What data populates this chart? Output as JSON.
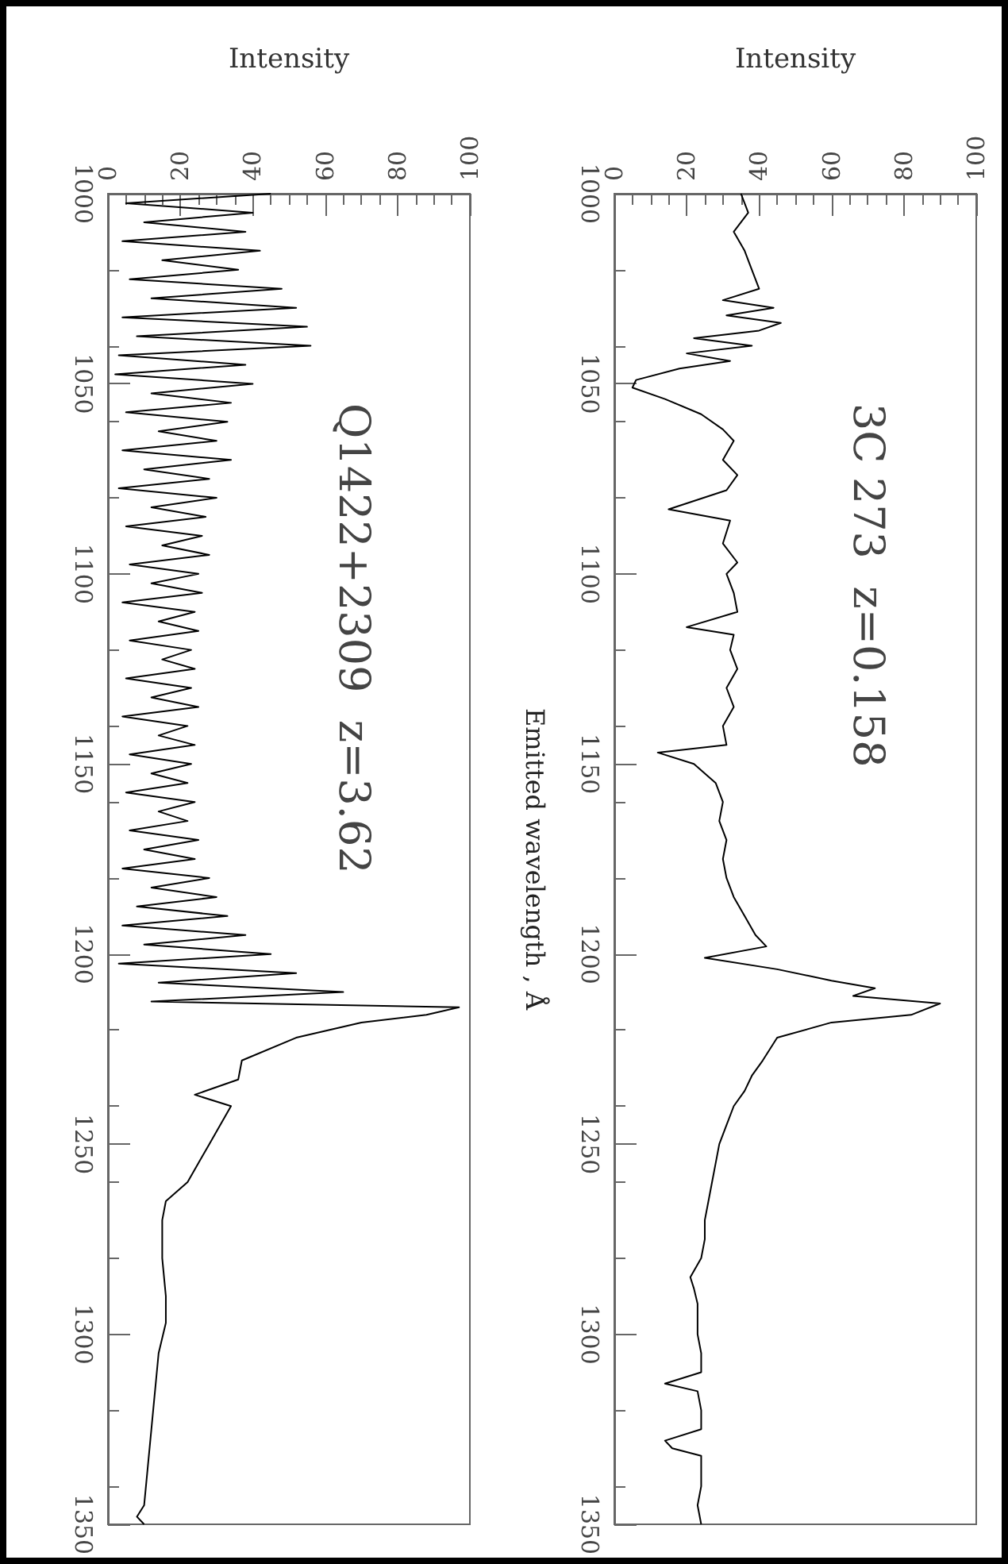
{
  "chart_data": [
    {
      "type": "line",
      "title": "3C 273  z=0.158",
      "ylabel": "Emitted wavelength , Å",
      "xlabel": "Intensity",
      "color": "#000000",
      "marker": "none",
      "values": [
        1000,
        1005,
        1010,
        1015,
        1020,
        1025,
        1028,
        1030,
        1032,
        1034,
        1036,
        1038,
        1040,
        1042,
        1044,
        1046,
        1049,
        1051,
        1054,
        1058,
        1062,
        1065,
        1070,
        1074,
        1078,
        1083,
        1086,
        1092,
        1097,
        1100,
        1105,
        1110,
        1114,
        1116,
        1120,
        1125,
        1130,
        1135,
        1140,
        1145,
        1147,
        1150,
        1155,
        1160,
        1165,
        1170,
        1175,
        1180,
        1185,
        1190,
        1195,
        1198,
        1201,
        1204,
        1207,
        1209,
        1211,
        1213,
        1216,
        1218,
        1222,
        1228,
        1232,
        1236,
        1240,
        1245,
        1250,
        1255,
        1260,
        1265,
        1270,
        1275,
        1280,
        1285,
        1288,
        1292,
        1300,
        1305,
        1310,
        1313,
        1315,
        1320,
        1325,
        1328,
        1330,
        1332,
        1340,
        1345,
        1350
      ],
      "x": [
        35,
        37,
        33,
        36,
        38,
        40,
        30,
        44,
        31,
        46,
        40,
        22,
        38,
        20,
        32,
        18,
        6,
        5,
        14,
        24,
        30,
        33,
        30,
        34,
        31,
        15,
        32,
        30,
        34,
        31,
        33,
        34,
        20,
        33,
        32,
        34,
        31,
        33,
        30,
        31,
        12,
        22,
        28,
        30,
        29,
        31,
        30,
        31,
        33,
        36,
        39,
        42,
        25,
        45,
        60,
        72,
        66,
        90,
        82,
        60,
        45,
        41,
        38,
        36,
        33,
        31,
        29,
        28,
        27,
        26,
        25,
        25,
        24,
        21,
        22,
        23,
        23,
        24,
        24,
        14,
        23,
        24,
        24,
        14,
        16,
        24,
        24,
        23,
        24
      ],
      "ylim": [
        1350,
        1000
      ],
      "yticks": [
        1000,
        1050,
        1100,
        1150,
        1200,
        1250,
        1300,
        1350
      ],
      "xlim": [
        0,
        100
      ],
      "xticks": [
        0,
        20,
        40,
        60,
        80,
        100
      ]
    },
    {
      "type": "line",
      "title": "Q1422+2309  z=3.62",
      "xlabel": "Intensity",
      "color": "#000000",
      "marker": "none",
      "values": [
        1000,
        1002.5,
        1005,
        1007.5,
        1010,
        1012.5,
        1015,
        1017.5,
        1020,
        1022.5,
        1025,
        1027.5,
        1030,
        1032.5,
        1035,
        1037.5,
        1040,
        1042.5,
        1045,
        1047.5,
        1050,
        1052.5,
        1055,
        1057.5,
        1060,
        1062.5,
        1065,
        1067.5,
        1070,
        1072.5,
        1075,
        1077.5,
        1080,
        1082.5,
        1085,
        1087.5,
        1090,
        1092.5,
        1095,
        1097.5,
        1100,
        1102.5,
        1105,
        1107.5,
        1110,
        1112.5,
        1115,
        1117.5,
        1120,
        1122.5,
        1125,
        1127.5,
        1130,
        1132.5,
        1135,
        1137.5,
        1140,
        1142.5,
        1145,
        1147.5,
        1150,
        1152.5,
        1155,
        1157.5,
        1160,
        1162.5,
        1165,
        1167.5,
        1170,
        1172.5,
        1175,
        1177.5,
        1180,
        1182.5,
        1185,
        1187.5,
        1190,
        1192.5,
        1195,
        1197.5,
        1200,
        1202.5,
        1205,
        1207.5,
        1210,
        1212.5,
        1214,
        1216,
        1218,
        1222,
        1228,
        1233,
        1237,
        1240,
        1245,
        1250,
        1255,
        1260,
        1265,
        1270,
        1280,
        1290,
        1297,
        1305,
        1315,
        1325,
        1335,
        1345,
        1348,
        1350
      ],
      "x": [
        45,
        5,
        40,
        10,
        38,
        4,
        42,
        15,
        36,
        6,
        48,
        12,
        52,
        4,
        55,
        8,
        56,
        3,
        38,
        2,
        40,
        12,
        34,
        5,
        33,
        14,
        30,
        4,
        34,
        10,
        28,
        3,
        30,
        12,
        27,
        5,
        26,
        15,
        28,
        6,
        25,
        12,
        26,
        4,
        24,
        14,
        25,
        6,
        23,
        15,
        24,
        5,
        23,
        12,
        25,
        4,
        22,
        14,
        24,
        6,
        23,
        12,
        22,
        5,
        24,
        14,
        22,
        6,
        25,
        10,
        24,
        4,
        28,
        12,
        30,
        8,
        33,
        4,
        38,
        10,
        45,
        3,
        52,
        14,
        65,
        12,
        97,
        88,
        70,
        52,
        37,
        36,
        24,
        34,
        31,
        28,
        25,
        22,
        16,
        15,
        15,
        16,
        16,
        14,
        13,
        12,
        11,
        10,
        8,
        10
      ],
      "ylim": [
        1350,
        1000
      ],
      "yticks": [
        1000,
        1050,
        1100,
        1150,
        1200,
        1250,
        1300,
        1350
      ],
      "xlim": [
        0,
        100
      ],
      "xticks": [
        0,
        20,
        40,
        60,
        80,
        100
      ]
    }
  ]
}
